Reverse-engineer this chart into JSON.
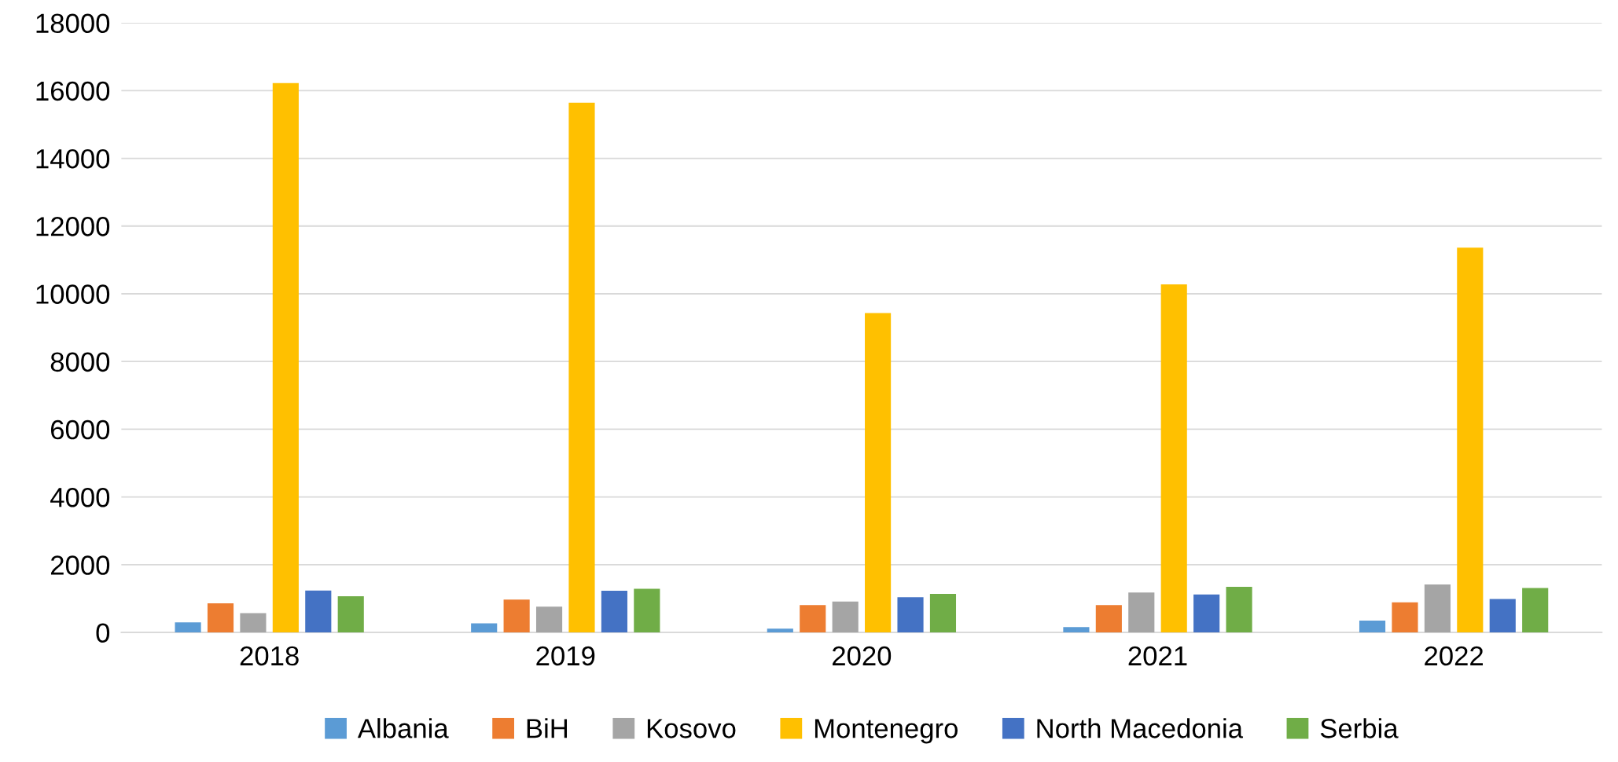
{
  "chart_data": {
    "type": "bar",
    "categories": [
      "2018",
      "2019",
      "2020",
      "2021",
      "2022"
    ],
    "series": [
      {
        "name": "Albania",
        "color": "#5b9bd5",
        "values": [
          300,
          270,
          110,
          160,
          350
        ]
      },
      {
        "name": "BiH",
        "color": "#ed7d31",
        "values": [
          860,
          970,
          810,
          810,
          890
        ]
      },
      {
        "name": "Kosovo",
        "color": "#a5a5a5",
        "values": [
          570,
          760,
          910,
          1180,
          1420
        ]
      },
      {
        "name": "Montenegro",
        "color": "#ffc000",
        "values": [
          16220,
          15640,
          9430,
          10280,
          11360
        ]
      },
      {
        "name": "North Macedonia",
        "color": "#4472c4",
        "values": [
          1240,
          1230,
          1040,
          1120,
          990
        ]
      },
      {
        "name": "Serbia",
        "color": "#70ad47",
        "values": [
          1070,
          1290,
          1140,
          1350,
          1310
        ]
      }
    ],
    "ylim": [
      0,
      18000
    ],
    "yticks": [
      0,
      2000,
      4000,
      6000,
      8000,
      10000,
      12000,
      14000,
      16000,
      18000
    ],
    "grid": "y",
    "legend": "bottom"
  }
}
